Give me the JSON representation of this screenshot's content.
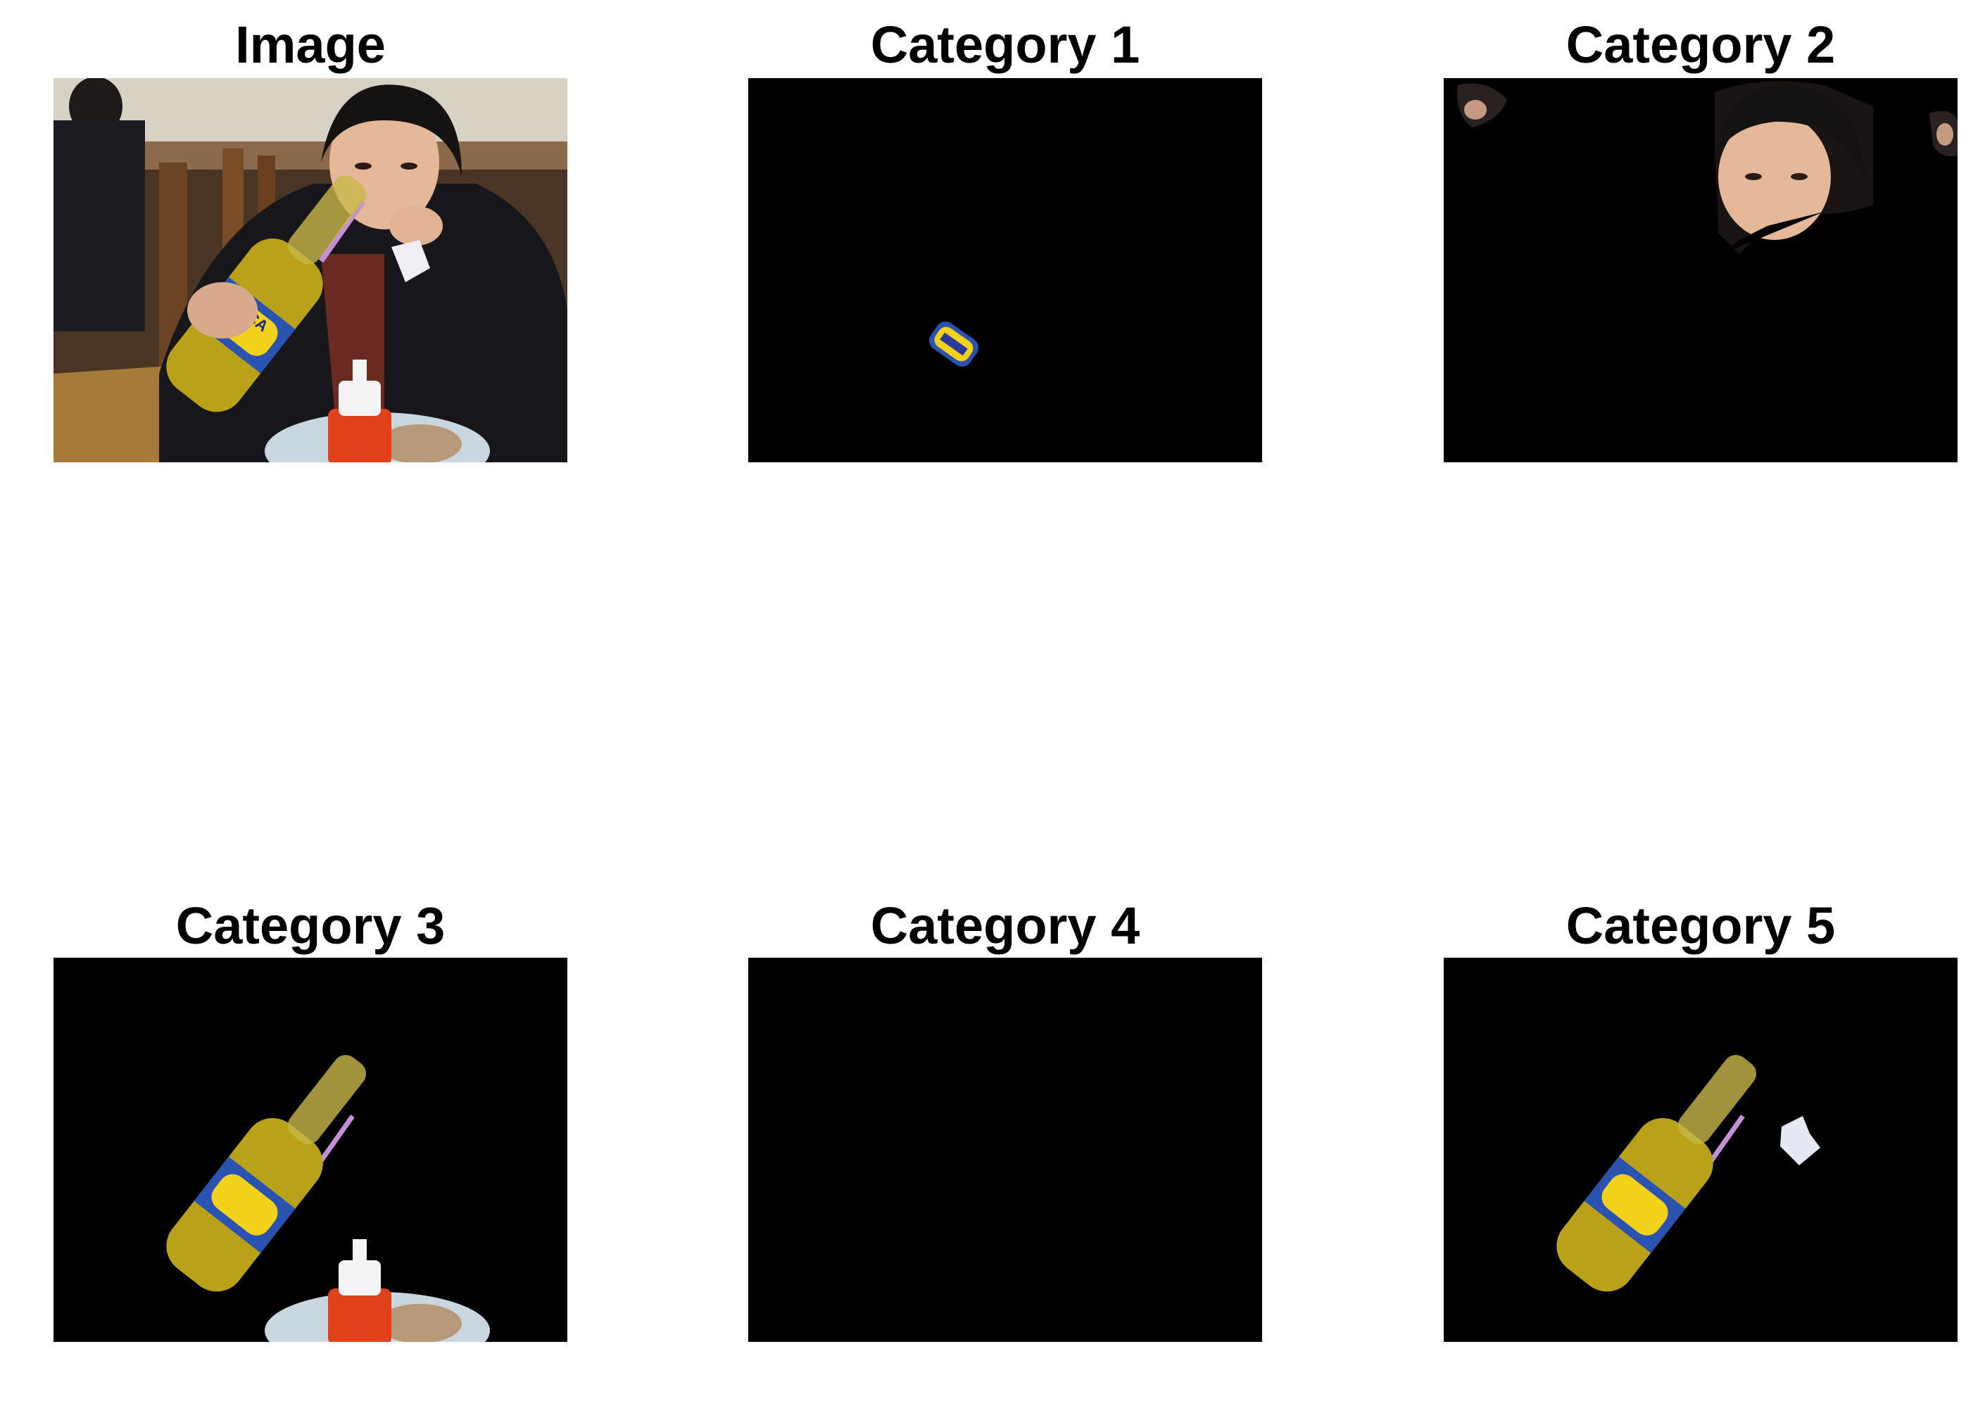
{
  "figure": {
    "background": "#ffffff",
    "panels": [
      {
        "title": "Image",
        "content": "original-photo"
      },
      {
        "title": "Category 1",
        "content": "segment-bottle-label"
      },
      {
        "title": "Category 2",
        "content": "segment-faces"
      },
      {
        "title": "Category 3",
        "content": "segment-bottle-and-plate"
      },
      {
        "title": "Category 4",
        "content": "segment-empty"
      },
      {
        "title": "Category 5",
        "content": "segment-bottle-and-napkin"
      }
    ],
    "mask_color": "#000000",
    "bottle_label_text": [
      "INCA",
      "KOLA"
    ]
  }
}
